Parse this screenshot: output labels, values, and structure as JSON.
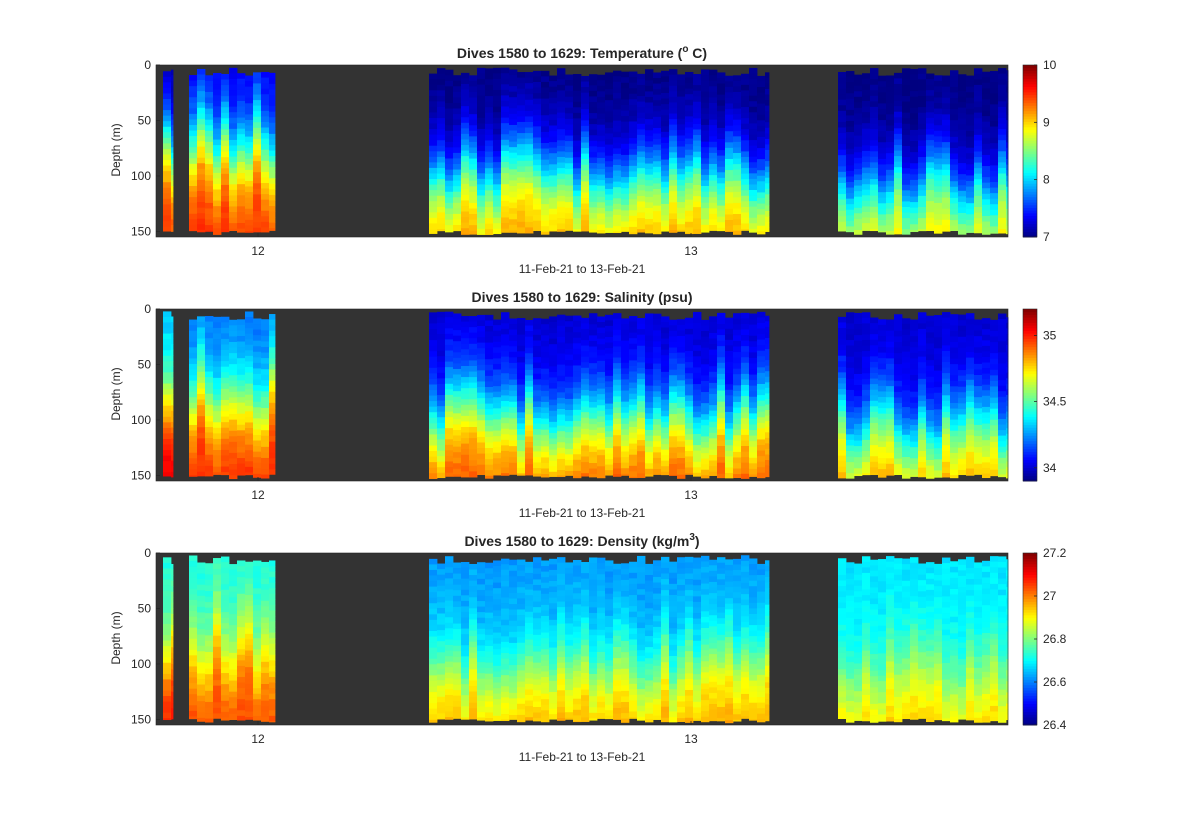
{
  "chart_data": [
    {
      "type": "heatmap",
      "variable": "temperature",
      "title": "Dives 1580 to 1629: Temperature (",
      "title_sup": "o",
      "title_end": " C)",
      "xlabel": "11-Feb-21 to 13-Feb-21",
      "ylabel": "Depth (m)",
      "x_ticks": [
        "12",
        "13"
      ],
      "y_ticks": [
        0,
        50,
        100,
        150
      ],
      "ylim": [
        0,
        155
      ],
      "colorbar": {
        "min": 7,
        "max": 10,
        "ticks": [
          7,
          8,
          9,
          10
        ]
      },
      "colormap": "jet",
      "nodata_color": "#333333",
      "profiles": [
        {
          "segment": 1,
          "surface": 7.1,
          "bottom": 9.5,
          "thermocline_m": 75
        },
        {
          "segment": 2,
          "surface": 7.3,
          "bottom": 9.5,
          "thermocline_m": 70
        },
        {
          "segment": 3,
          "surface": 7.0,
          "bottom": 9.2,
          "thermocline_m": 95
        },
        {
          "segment": 4,
          "surface": 7.0,
          "bottom": 9.0,
          "thermocline_m": 105
        }
      ]
    },
    {
      "type": "heatmap",
      "variable": "salinity",
      "title": "Dives 1580 to 1629: Salinity (psu)",
      "xlabel": "11-Feb-21 to 13-Feb-21",
      "ylabel": "Depth (m)",
      "x_ticks": [
        "12",
        "13"
      ],
      "y_ticks": [
        0,
        50,
        100,
        150
      ],
      "ylim": [
        0,
        155
      ],
      "colorbar": {
        "min": 33.9,
        "max": 35.2,
        "ticks": [
          34,
          34.5,
          35
        ]
      },
      "colormap": "jet",
      "nodata_color": "#333333",
      "profiles": [
        {
          "segment": 1,
          "surface": 34.3,
          "bottom": 35.1,
          "thermocline_m": 80
        },
        {
          "segment": 2,
          "surface": 34.2,
          "bottom": 35.0,
          "thermocline_m": 75
        },
        {
          "segment": 3,
          "surface": 34.0,
          "bottom": 34.95,
          "thermocline_m": 95
        },
        {
          "segment": 4,
          "surface": 34.0,
          "bottom": 34.85,
          "thermocline_m": 105
        }
      ]
    },
    {
      "type": "heatmap",
      "variable": "density",
      "title": "Dives 1580 to 1629: Density (kg/m",
      "title_sup": "3",
      "title_end": ")",
      "xlabel": "11-Feb-21 to 13-Feb-21",
      "ylabel": "Depth (m)",
      "x_ticks": [
        "12",
        "13"
      ],
      "y_ticks": [
        0,
        50,
        100,
        150
      ],
      "ylim": [
        0,
        155
      ],
      "colorbar": {
        "min": 26.4,
        "max": 27.2,
        "ticks": [
          26.4,
          26.6,
          26.8,
          27,
          27.2
        ]
      },
      "colormap": "jet",
      "nodata_color": "#333333",
      "profiles": [
        {
          "segment": 1,
          "surface": 26.72,
          "bottom": 27.1,
          "thermocline_m": 80
        },
        {
          "segment": 2,
          "surface": 26.72,
          "bottom": 27.05,
          "thermocline_m": 80
        },
        {
          "segment": 3,
          "surface": 26.62,
          "bottom": 26.98,
          "thermocline_m": 100
        },
        {
          "segment": 4,
          "surface": 26.68,
          "bottom": 26.95,
          "thermocline_m": 105
        }
      ]
    }
  ]
}
